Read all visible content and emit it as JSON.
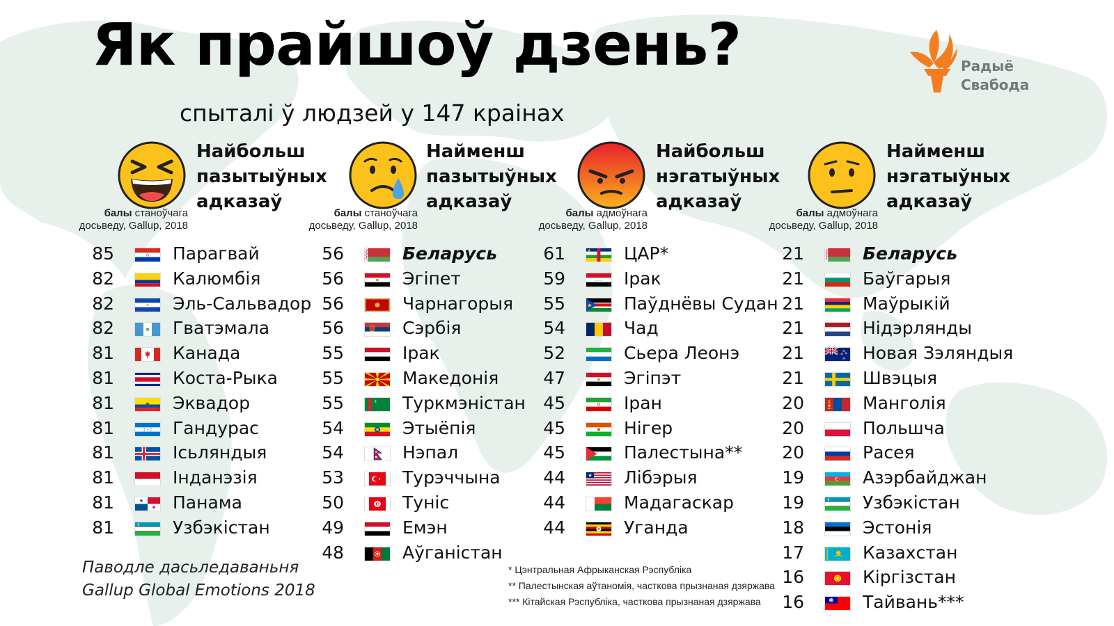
{
  "title": "Як прайшоў дзень?",
  "subtitle": "спыталі ў людзей у 147 краінах",
  "logo": {
    "line1": "Радыё",
    "line2": "Свабода",
    "icon": "torch-flame-logo-icon",
    "color": "#f47d20"
  },
  "colors": {
    "map": "#e8f1ec",
    "text": "#111111",
    "emoji_yellow": "#fcc21b",
    "emoji_red": "#f26522"
  },
  "columns": [
    {
      "id": "most-positive",
      "emoji": "laughing-face-icon",
      "label": [
        "Найбольш",
        "пазытыўных",
        "адказаў"
      ],
      "note": {
        "bold": "балы",
        "rest1": " станоўчага",
        "line2": "досьведу, Gallup, 2018"
      },
      "rows": [
        {
          "score": "85",
          "country": "Парагвай",
          "flag": "paraguay"
        },
        {
          "score": "82",
          "country": "Калюмбія",
          "flag": "colombia"
        },
        {
          "score": "82",
          "country": "Эль-Сальвадор",
          "flag": "elsalvador"
        },
        {
          "score": "82",
          "country": "Гватэмала",
          "flag": "guatemala"
        },
        {
          "score": "81",
          "country": "Канада",
          "flag": "canada"
        },
        {
          "score": "81",
          "country": "Коста-Рыка",
          "flag": "costarica"
        },
        {
          "score": "81",
          "country": "Эквадор",
          "flag": "ecuador"
        },
        {
          "score": "81",
          "country": "Гандурас",
          "flag": "honduras"
        },
        {
          "score": "81",
          "country": "Ісьляндыя",
          "flag": "iceland"
        },
        {
          "score": "81",
          "country": "Інданэзія",
          "flag": "indonesia"
        },
        {
          "score": "81",
          "country": "Панама",
          "flag": "panama"
        },
        {
          "score": "81",
          "country": "Узбэкістан",
          "flag": "uzbekistan"
        }
      ]
    },
    {
      "id": "least-positive",
      "emoji": "sad-tear-face-icon",
      "label": [
        "Найменш",
        "пазытыўных",
        "адказаў"
      ],
      "note": {
        "bold": "балы",
        "rest1": " станоўчага",
        "line2": "досьведу, Gallup, 2018"
      },
      "rows": [
        {
          "score": "56",
          "country": "Беларусь",
          "flag": "belarus",
          "emphasis": true
        },
        {
          "score": "56",
          "country": "Эгіпет",
          "flag": "egypt"
        },
        {
          "score": "56",
          "country": "Чарнагорыя",
          "flag": "montenegro"
        },
        {
          "score": "56",
          "country": "Сэрбія",
          "flag": "serbia"
        },
        {
          "score": "55",
          "country": "Ірак",
          "flag": "iraq"
        },
        {
          "score": "55",
          "country": "Македонія",
          "flag": "macedonia"
        },
        {
          "score": "55",
          "country": "Туркмэністан",
          "flag": "turkmenistan"
        },
        {
          "score": "54",
          "country": "Этыёпія",
          "flag": "ethiopia"
        },
        {
          "score": "54",
          "country": "Нэпал",
          "flag": "nepal"
        },
        {
          "score": "53",
          "country": "Турэччына",
          "flag": "turkey"
        },
        {
          "score": "50",
          "country": "Туніс",
          "flag": "tunisia"
        },
        {
          "score": "49",
          "country": "Емэн",
          "flag": "yemen"
        },
        {
          "score": "48",
          "country": "Аўганістан",
          "flag": "afghanistan"
        }
      ]
    },
    {
      "id": "most-negative",
      "emoji": "angry-face-icon",
      "label": [
        "Найбольш",
        "нэгатыўных",
        "адказаў"
      ],
      "note": {
        "bold": "балы",
        "rest1": " адмоўнага",
        "line2": "досьведу, Gallup, 2018"
      },
      "rows": [
        {
          "score": "61",
          "country": "ЦАР*",
          "flag": "car"
        },
        {
          "score": "59",
          "country": "Ірак",
          "flag": "iraq"
        },
        {
          "score": "55",
          "country": "Паўднёвы Судан",
          "flag": "southsudan"
        },
        {
          "score": "54",
          "country": "Чад",
          "flag": "chad"
        },
        {
          "score": "52",
          "country": "Сьера Леонэ",
          "flag": "sierraleone"
        },
        {
          "score": "47",
          "country": "Эгіпэт",
          "flag": "egypt"
        },
        {
          "score": "45",
          "country": "Іран",
          "flag": "iran"
        },
        {
          "score": "45",
          "country": "Нігер",
          "flag": "niger"
        },
        {
          "score": "45",
          "country": "Палестына**",
          "flag": "palestine"
        },
        {
          "score": "44",
          "country": "Лібэрыя",
          "flag": "liberia"
        },
        {
          "score": "44",
          "country": "Мадагаскар",
          "flag": "madagascar"
        },
        {
          "score": "44",
          "country": "Уганда",
          "flag": "uganda"
        }
      ]
    },
    {
      "id": "least-negative",
      "emoji": "neutral-face-icon",
      "label": [
        "Найменш",
        "нэгатыўных",
        "адказаў"
      ],
      "note": {
        "bold": "балы",
        "rest1": " адмоўнага",
        "line2": "досьведу, Gallup, 2018"
      },
      "rows": [
        {
          "score": "21",
          "country": "Беларусь",
          "flag": "belarus",
          "emphasis": true
        },
        {
          "score": "21",
          "country": "Баўгарыя",
          "flag": "bulgaria"
        },
        {
          "score": "21",
          "country": "Маўрыкій",
          "flag": "mauritius"
        },
        {
          "score": "21",
          "country": "Нідэрлянды",
          "flag": "netherlands"
        },
        {
          "score": "21",
          "country": "Новая Зэляндыя",
          "flag": "newzealand"
        },
        {
          "score": "21",
          "country": "Швэцыя",
          "flag": "sweden"
        },
        {
          "score": "20",
          "country": "Манголія",
          "flag": "mongolia"
        },
        {
          "score": "20",
          "country": "Польшча",
          "flag": "poland"
        },
        {
          "score": "20",
          "country": "Расея",
          "flag": "russia"
        },
        {
          "score": "19",
          "country": "Азэрбайджан",
          "flag": "azerbaijan"
        },
        {
          "score": "19",
          "country": "Узбэкістан",
          "flag": "uzbekistan"
        },
        {
          "score": "18",
          "country": "Эстонія",
          "flag": "estonia"
        },
        {
          "score": "17",
          "country": "Казахстан",
          "flag": "kazakhstan"
        },
        {
          "score": "16",
          "country": "Кіргізстан",
          "flag": "kyrgyzstan"
        },
        {
          "score": "16",
          "country": "Тайвань***",
          "flag": "taiwan"
        }
      ]
    }
  ],
  "source": [
    "Паводле дасьледаваньня",
    "Gallup Global Emotions 2018"
  ],
  "footnotes": [
    "* Цэнтральная Афрыканская Рэспубліка",
    "** Палестынская аўтаномія, часткова прызнаная дзяржава",
    "*** Кітайская Рэспубліка, часткова прызнаная дзяржава"
  ]
}
